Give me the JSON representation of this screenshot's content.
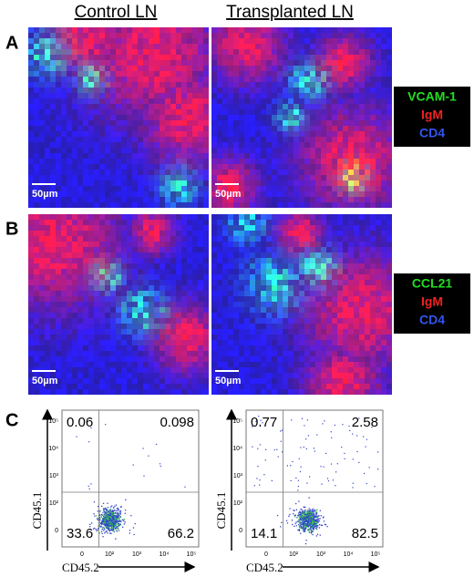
{
  "columns": [
    "Control LN",
    "Transplanted LN"
  ],
  "panels": [
    {
      "label": "A",
      "legend": [
        "VCAM-1",
        "IgM",
        "CD4"
      ],
      "scale_bar": "50µm"
    },
    {
      "label": "B",
      "legend": [
        "CCL21",
        "IgM",
        "CD4"
      ],
      "scale_bar": "50µm"
    }
  ],
  "flow": {
    "label": "C",
    "x_axis": "CD45.2",
    "y_axis": "CD45.1",
    "ticks": [
      "0",
      "10²",
      "10³",
      "10⁴",
      "10⁵"
    ],
    "plots": [
      {
        "quadrants": [
          0.06,
          0.098,
          33.6,
          66.2
        ]
      },
      {
        "quadrants": [
          0.77,
          2.58,
          14.1,
          82.5
        ]
      }
    ]
  }
}
